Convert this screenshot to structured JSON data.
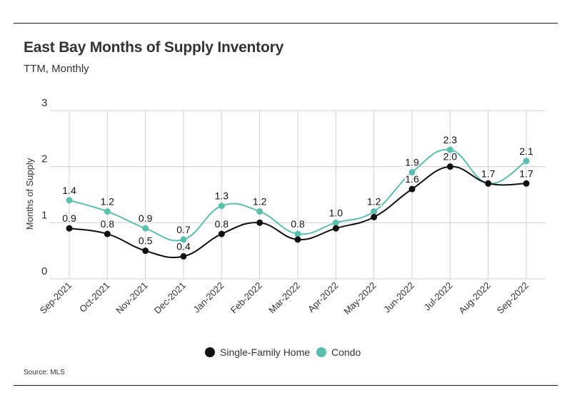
{
  "header": {
    "title": "East Bay Months of Supply Inventory",
    "subtitle": "TTM, Monthly"
  },
  "footer": {
    "source": "Source:  MLS"
  },
  "colors": {
    "single_family": "#111111",
    "condo": "#5bbfad",
    "grid": "#d0d0d0",
    "text": "#333333"
  },
  "chart_data": {
    "type": "line",
    "title": "East Bay Months of Supply Inventory",
    "subtitle": "TTM, Monthly",
    "xlabel": "",
    "ylabel": "Months of Supply",
    "ylim": [
      0,
      3
    ],
    "yticks": [
      0,
      1,
      2,
      3
    ],
    "grid": true,
    "legend_position": "bottom-center",
    "categories": [
      "Sep-2021",
      "Oct-2021",
      "Nov-2021",
      "Dec-2021",
      "Jan-2022",
      "Feb-2022",
      "Mar-2022",
      "Apr-2022",
      "May-2022",
      "Jun-2022",
      "Jul-2022",
      "Aug-2022",
      "Sep-2022"
    ],
    "series": [
      {
        "name": "Single-Family Home",
        "color": "#111111",
        "values": [
          0.9,
          0.8,
          0.5,
          0.4,
          0.8,
          1.0,
          0.7,
          0.9,
          1.1,
          1.6,
          2.0,
          1.7,
          1.7
        ],
        "labels": [
          "0.9",
          "0.8",
          "0.5",
          "0.4",
          "0.8",
          "",
          "",
          "",
          "",
          "1.6",
          "2.0",
          "",
          "1.7"
        ]
      },
      {
        "name": "Condo",
        "color": "#5bbfad",
        "values": [
          1.4,
          1.2,
          0.9,
          0.7,
          1.3,
          1.2,
          0.8,
          1.0,
          1.2,
          1.9,
          2.3,
          1.7,
          2.1
        ],
        "labels": [
          "1.4",
          "1.2",
          "0.9",
          "0.7",
          "1.3",
          "1.2",
          "0.8",
          "1.0",
          "1.2",
          "1.9",
          "2.3",
          "1.7",
          "2.1"
        ]
      }
    ],
    "source": "Source:  MLS"
  }
}
